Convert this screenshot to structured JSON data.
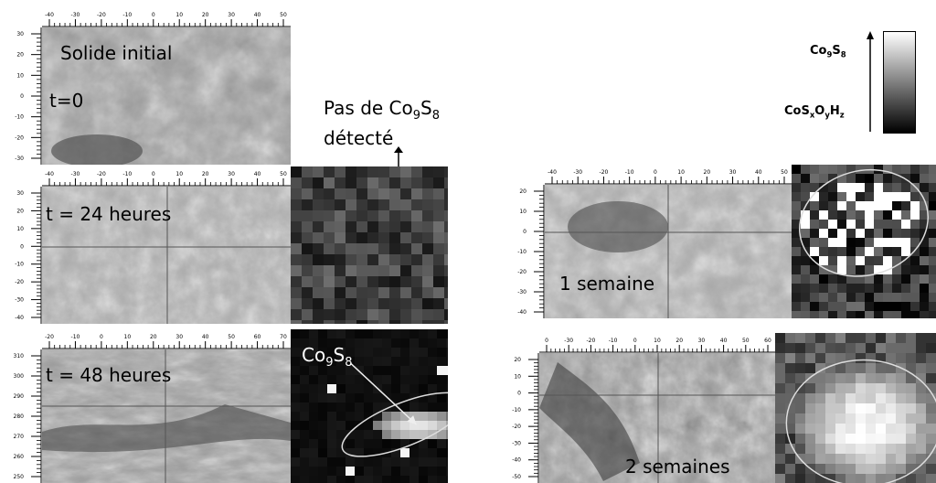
{
  "panels": {
    "initial": {
      "title": "Solide initial",
      "time": "t=0"
    },
    "h24": {
      "time": "t = 24 heures"
    },
    "h48": {
      "time": "t = 48 heures"
    },
    "w1": {
      "time": "1 semaine"
    },
    "w2": {
      "time": "2 semaines"
    }
  },
  "annotations": {
    "none_detected_line1_prefix": "Pas de Co",
    "none_detected_sub1": "9",
    "none_detected_mid": "S",
    "none_detected_sub2": "8",
    "none_detected_line2": "détecté",
    "co9s8_prefix": "Co",
    "co9s8_sub1": "9",
    "co9s8_mid": "S",
    "co9s8_sub2": "8"
  },
  "colorbar": {
    "top": {
      "a": "Co",
      "s1": "9",
      "b": "S",
      "s2": "8"
    },
    "bottom": {
      "a": "CoS",
      "s1": "x",
      "b": "O",
      "s2": "y",
      "c": "H",
      "s3": "z"
    }
  },
  "rulers": {
    "p0_top": [
      "-40",
      "-30",
      "-20",
      "-10",
      "0",
      "10",
      "20",
      "30",
      "40",
      "50"
    ],
    "p0_left": [
      "30",
      "20",
      "10",
      "0",
      "-10",
      "-20",
      "-30"
    ],
    "p1_top": [
      "-40",
      "-30",
      "-20",
      "-10",
      "0",
      "10",
      "20",
      "30",
      "40",
      "50"
    ],
    "p1_left": [
      "30",
      "20",
      "10",
      "0",
      "-10",
      "-20",
      "-30",
      "-40"
    ],
    "p2_top": [
      "-20",
      "-10",
      "0",
      "10",
      "20",
      "30",
      "40",
      "50",
      "60",
      "70"
    ],
    "p2_left": [
      "310",
      "300",
      "290",
      "280",
      "270",
      "260",
      "250"
    ],
    "p3_top": [
      "-40",
      "-30",
      "-20",
      "-10",
      "0",
      "10",
      "20",
      "30",
      "40",
      "50"
    ],
    "p3_left": [
      "20",
      "10",
      "0",
      "-10",
      "-20",
      "-30",
      "-40"
    ],
    "p4_top": [
      "0",
      "-30",
      "-20",
      "-10",
      "0",
      "10",
      "20",
      "30",
      "40",
      "50",
      "60"
    ],
    "p4_left": [
      "20",
      "10",
      "0",
      "-10",
      "-20",
      "-30",
      "-40",
      "-50"
    ]
  }
}
